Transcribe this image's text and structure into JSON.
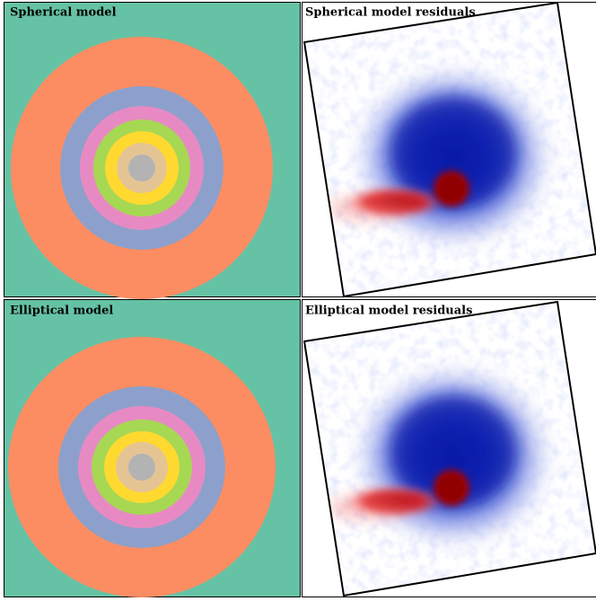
{
  "panels": [
    {
      "title": "Spherical model"
    },
    {
      "title": "Spherical model residuals"
    },
    {
      "title": "Elliptical model"
    },
    {
      "title": "Elliptical model residuals"
    }
  ]
}
